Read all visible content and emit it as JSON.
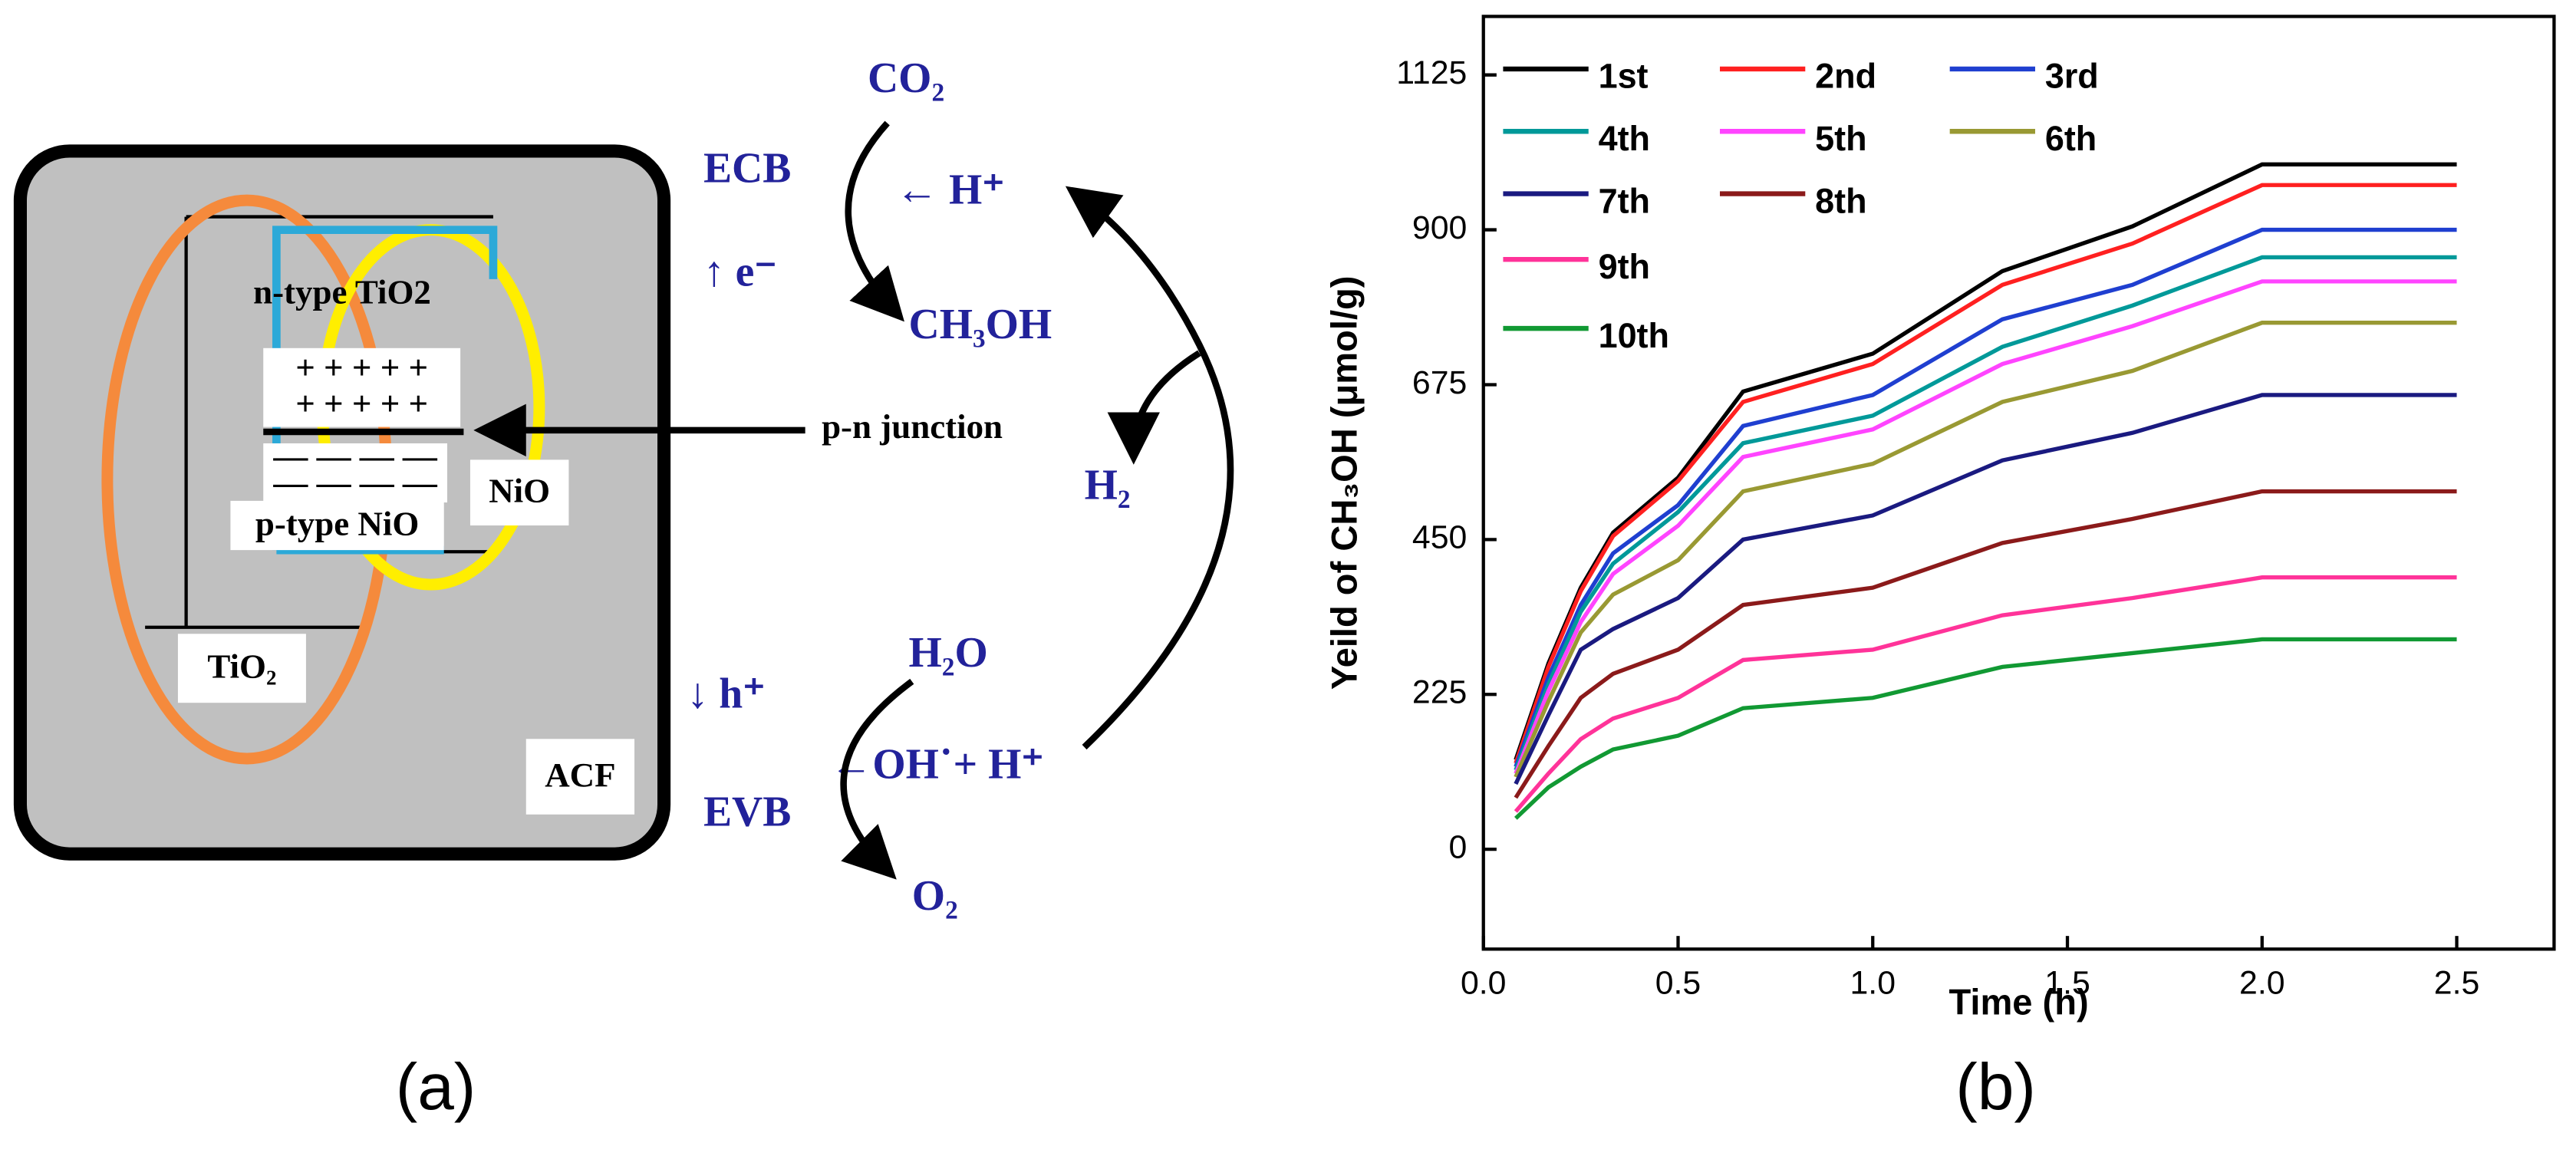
{
  "diagram": {
    "co2": "CO₂",
    "ecb": "ECB",
    "h_plus_top": "← H⁺",
    "e_minus": "↑ e⁻",
    "ch3oh": "CH₃OH",
    "n_type": "n-type TiO2",
    "plus_row_1": "+ + + + +",
    "plus_row_2": "+ + + + +",
    "pn_junction": "p-n junction",
    "nio": "NiO",
    "h2": "H₂",
    "minus_row_1": "— — — —",
    "minus_row_2": "— — — —",
    "p_type": "p-type NiO",
    "tio2": "TiO₂",
    "h2o": "H₂O",
    "h_hole": "↓ h⁺",
    "oh_h": "←OH˙+ H⁺",
    "evb": "EVB",
    "acf": "ACF",
    "o2": "O₂"
  },
  "panel_labels": [
    "(a)",
    "(b)"
  ],
  "chart_data": {
    "type": "line",
    "xlabel": "Time (h)",
    "ylabel": "Yeild of CH₃OH (μmol/g)",
    "x": [
      0.083,
      0.167,
      0.25,
      0.333,
      0.5,
      0.667,
      1.0,
      1.333,
      1.667,
      2.0,
      2.5
    ],
    "series": [
      {
        "name": "1st",
        "color": "#000000",
        "values": [
          130,
          270,
          380,
          460,
          540,
          665,
          720,
          840,
          905,
          995,
          995
        ]
      },
      {
        "name": "2nd",
        "color": "#ff2020",
        "values": [
          125,
          265,
          375,
          455,
          535,
          650,
          705,
          820,
          880,
          965,
          965
        ]
      },
      {
        "name": "3rd",
        "color": "#1f3fd0",
        "values": [
          120,
          250,
          355,
          430,
          500,
          615,
          660,
          770,
          820,
          900,
          900
        ]
      },
      {
        "name": "4th",
        "color": "#009999",
        "values": [
          115,
          240,
          345,
          415,
          490,
          590,
          630,
          730,
          790,
          860,
          860
        ]
      },
      {
        "name": "5th",
        "color": "#ff44ff",
        "values": [
          110,
          230,
          330,
          400,
          470,
          570,
          610,
          705,
          760,
          825,
          825
        ]
      },
      {
        "name": "6th",
        "color": "#999933",
        "values": [
          105,
          215,
          315,
          370,
          420,
          520,
          560,
          650,
          695,
          765,
          765
        ]
      },
      {
        "name": "7th",
        "color": "#1a1a80",
        "values": [
          95,
          195,
          290,
          320,
          365,
          450,
          485,
          565,
          605,
          660,
          660
        ]
      },
      {
        "name": "8th",
        "color": "#8b1a1a",
        "values": [
          75,
          150,
          220,
          255,
          290,
          355,
          380,
          445,
          480,
          520,
          520
        ]
      },
      {
        "name": "9th",
        "color": "#ff3399",
        "values": [
          55,
          110,
          160,
          190,
          220,
          275,
          290,
          340,
          365,
          395,
          395
        ]
      },
      {
        "name": "10th",
        "color": "#119933",
        "values": [
          45,
          90,
          120,
          145,
          165,
          205,
          220,
          265,
          285,
          305,
          305
        ]
      }
    ],
    "xlim": [
      0,
      2.75
    ],
    "ylim": [
      -145,
      1210
    ],
    "xticks": [
      {
        "value": 0,
        "label": "0.0"
      },
      0.5,
      {
        "value": 1,
        "label": "1.0"
      },
      1.5,
      {
        "value": 2,
        "label": "2.0"
      },
      2.5
    ],
    "yticks": [
      0,
      225,
      450,
      675,
      900,
      1125
    ],
    "legend": "upper left",
    "grid": false
  }
}
